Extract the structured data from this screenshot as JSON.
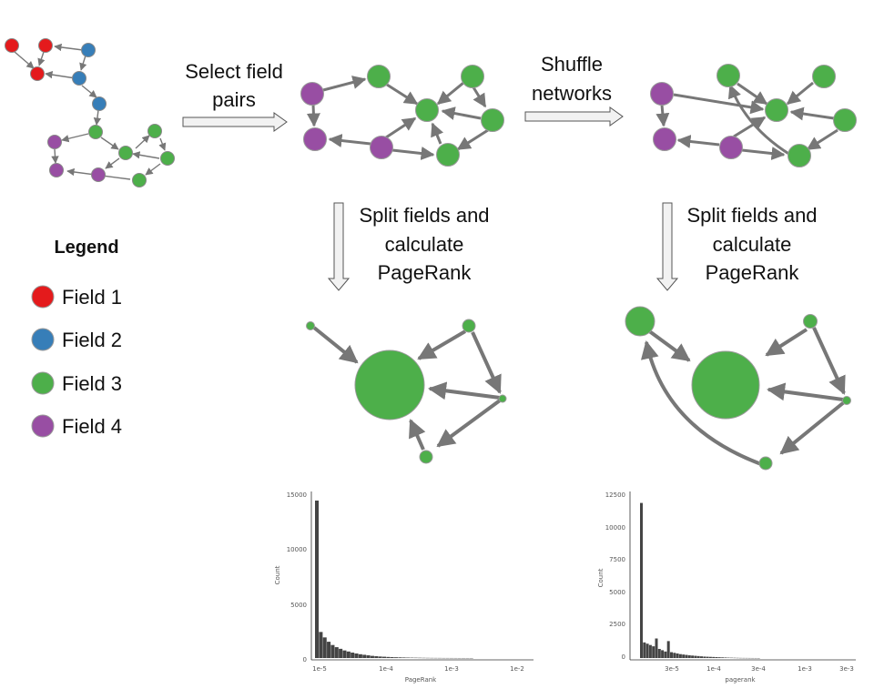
{
  "steps": {
    "select_field_pairs": [
      "Select field",
      "pairs"
    ],
    "shuffle_networks": [
      "Shuffle",
      "networks"
    ],
    "split_left": [
      "Split fields and",
      "calculate",
      "PageRank"
    ],
    "split_right": [
      "Split fields and",
      "calculate",
      "PageRank"
    ]
  },
  "legend": {
    "title": "Legend",
    "items": [
      {
        "label": "Field 1",
        "color": "#e41a1c"
      },
      {
        "label": "Field 2",
        "color": "#377eb8"
      },
      {
        "label": "Field 3",
        "color": "#4daf4a"
      },
      {
        "label": "Field 4",
        "color": "#984ea3"
      }
    ]
  },
  "chart_data": [
    {
      "type": "bar",
      "xlabel": "PageRank",
      "ylabel": "Count",
      "x_scale": "log",
      "x_ticks": [
        "1e-5",
        "1e-4",
        "1e-3",
        "1e-2"
      ],
      "y_ticks": [
        "0",
        "5000",
        "10000",
        "15000"
      ],
      "ylim": [
        0,
        15000
      ],
      "series": [
        {
          "values": [
            14500,
            2400,
            1900,
            1500,
            1200,
            1000,
            850,
            700,
            600,
            500,
            420,
            350,
            300,
            250,
            200,
            170,
            140,
            120,
            100,
            85,
            70,
            60,
            50,
            40,
            35,
            30,
            25,
            20,
            15,
            12,
            10,
            8,
            6,
            5,
            4,
            3,
            2,
            2,
            1,
            1
          ]
        }
      ]
    },
    {
      "type": "bar",
      "xlabel": "pagerank",
      "ylabel": "Count",
      "x_scale": "log",
      "x_ticks": [
        "3e-5",
        "1e-4",
        "3e-4",
        "1e-3",
        "3e-3"
      ],
      "y_ticks": [
        "0",
        "2500",
        "5000",
        "7500",
        "10000",
        "12500"
      ],
      "ylim": [
        0,
        12500
      ],
      "series": [
        {
          "values": [
            11900,
            1200,
            1100,
            1000,
            900,
            1500,
            700,
            600,
            500,
            1300,
            450,
            400,
            350,
            300,
            270,
            240,
            210,
            190,
            170,
            150,
            130,
            110,
            100,
            90,
            80,
            70,
            60,
            50,
            40,
            30,
            25,
            20,
            15,
            10,
            8,
            6,
            4,
            3,
            2,
            1
          ]
        }
      ]
    }
  ]
}
